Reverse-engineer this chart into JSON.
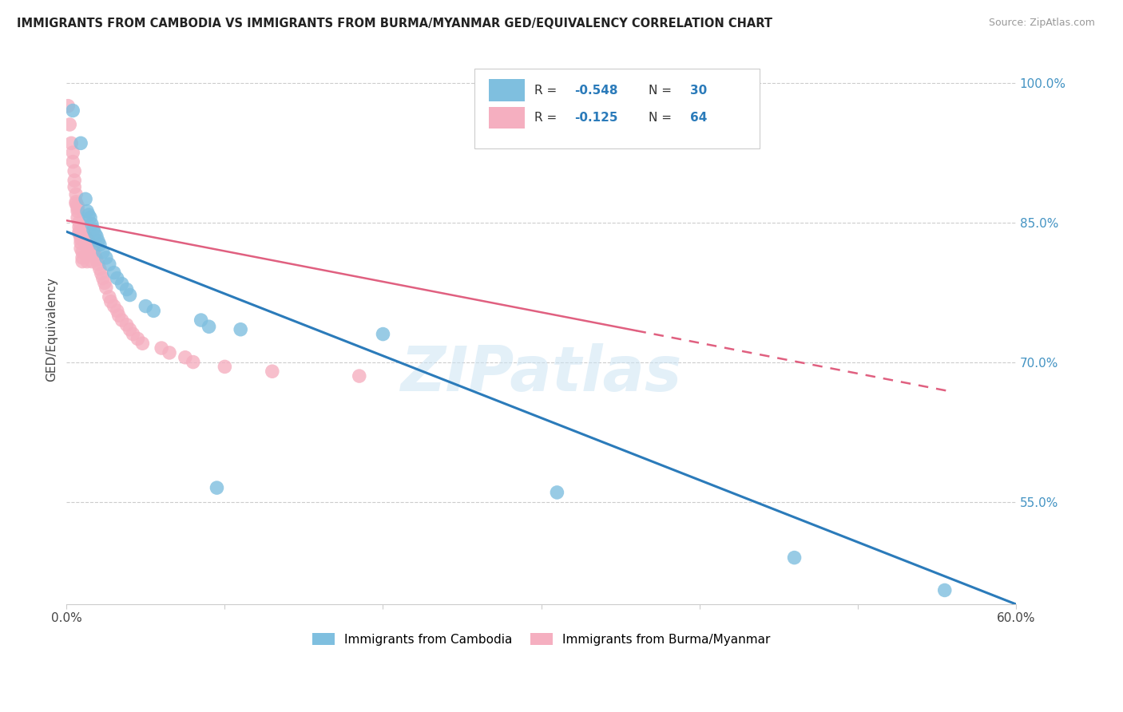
{
  "title": "IMMIGRANTS FROM CAMBODIA VS IMMIGRANTS FROM BURMA/MYANMAR GED/EQUIVALENCY CORRELATION CHART",
  "source": "Source: ZipAtlas.com",
  "ylabel": "GED/Equivalency",
  "legend_label_blue": "Immigrants from Cambodia",
  "legend_label_pink": "Immigrants from Burma/Myanmar",
  "R_blue": -0.548,
  "N_blue": 30,
  "R_pink": -0.125,
  "N_pink": 64,
  "x_min": 0.0,
  "x_max": 0.6,
  "y_min": 0.44,
  "y_max": 1.03,
  "x_ticks": [
    0.0,
    0.1,
    0.2,
    0.3,
    0.4,
    0.5,
    0.6
  ],
  "x_tick_labels": [
    "0.0%",
    "",
    "",
    "",
    "",
    "",
    "60.0%"
  ],
  "y_ticks": [
    0.55,
    0.7,
    0.85,
    1.0
  ],
  "y_tick_labels": [
    "55.0%",
    "70.0%",
    "85.0%",
    "100.0%"
  ],
  "color_blue": "#7fbfdf",
  "color_blue_line": "#2b7bba",
  "color_pink": "#f5afc0",
  "color_pink_line": "#e06080",
  "color_right_axis": "#4393c3",
  "watermark": "ZIPatlas",
  "blue_scatter_x": [
    0.004,
    0.009,
    0.012,
    0.013,
    0.014,
    0.015,
    0.016,
    0.017,
    0.018,
    0.019,
    0.02,
    0.021,
    0.023,
    0.025,
    0.027,
    0.03,
    0.032,
    0.035,
    0.038,
    0.04,
    0.05,
    0.055,
    0.085,
    0.09,
    0.095,
    0.11,
    0.2,
    0.31,
    0.46,
    0.555
  ],
  "blue_scatter_y": [
    0.97,
    0.935,
    0.875,
    0.862,
    0.858,
    0.855,
    0.848,
    0.842,
    0.838,
    0.835,
    0.83,
    0.826,
    0.818,
    0.812,
    0.805,
    0.796,
    0.79,
    0.784,
    0.778,
    0.772,
    0.76,
    0.755,
    0.745,
    0.738,
    0.565,
    0.735,
    0.73,
    0.56,
    0.49,
    0.455
  ],
  "pink_scatter_x": [
    0.001,
    0.002,
    0.003,
    0.004,
    0.004,
    0.005,
    0.005,
    0.005,
    0.006,
    0.006,
    0.006,
    0.007,
    0.007,
    0.007,
    0.007,
    0.008,
    0.008,
    0.008,
    0.008,
    0.009,
    0.009,
    0.009,
    0.009,
    0.01,
    0.01,
    0.01,
    0.011,
    0.011,
    0.012,
    0.012,
    0.013,
    0.013,
    0.013,
    0.014,
    0.015,
    0.016,
    0.016,
    0.017,
    0.018,
    0.019,
    0.02,
    0.021,
    0.022,
    0.023,
    0.024,
    0.025,
    0.027,
    0.028,
    0.03,
    0.032,
    0.033,
    0.035,
    0.038,
    0.04,
    0.042,
    0.045,
    0.048,
    0.06,
    0.065,
    0.075,
    0.08,
    0.1,
    0.13,
    0.185
  ],
  "pink_scatter_y": [
    0.975,
    0.955,
    0.935,
    0.925,
    0.915,
    0.905,
    0.895,
    0.888,
    0.88,
    0.872,
    0.87,
    0.868,
    0.865,
    0.862,
    0.855,
    0.85,
    0.845,
    0.84,
    0.838,
    0.835,
    0.832,
    0.828,
    0.822,
    0.818,
    0.812,
    0.808,
    0.845,
    0.838,
    0.835,
    0.828,
    0.822,
    0.815,
    0.808,
    0.83,
    0.825,
    0.82,
    0.808,
    0.82,
    0.815,
    0.81,
    0.805,
    0.8,
    0.795,
    0.79,
    0.785,
    0.78,
    0.77,
    0.765,
    0.76,
    0.755,
    0.75,
    0.745,
    0.74,
    0.735,
    0.73,
    0.725,
    0.72,
    0.715,
    0.71,
    0.705,
    0.7,
    0.695,
    0.69,
    0.685
  ],
  "blue_line_x0": 0.0,
  "blue_line_x1": 0.6,
  "blue_line_y0": 0.84,
  "blue_line_y1": 0.44,
  "pink_line_x0": 0.0,
  "pink_line_x1": 0.56,
  "pink_line_y0": 0.852,
  "pink_line_y1": 0.668
}
